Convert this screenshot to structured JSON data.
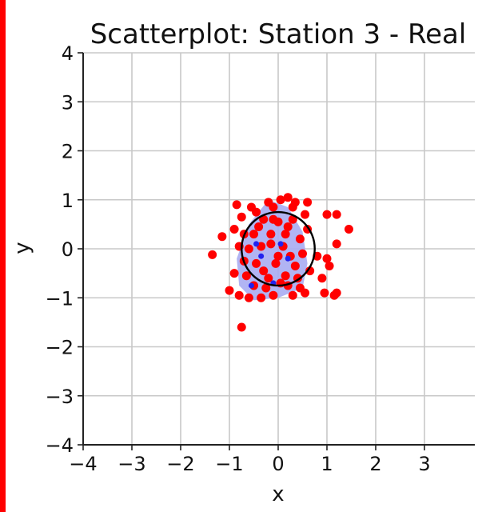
{
  "chart_data": {
    "type": "scatter",
    "title": "Scatterplot: Station 3 - Real",
    "xlabel": "x",
    "ylabel": "y",
    "xlim": [
      -4,
      4
    ],
    "ylim": [
      -4,
      4
    ],
    "xticks": [
      "−4",
      "−3",
      "−2",
      "−1",
      "0",
      "1",
      "2",
      "3"
    ],
    "yticks": [
      "4",
      "3",
      "2",
      "1",
      "0",
      "−1",
      "−2",
      "−3",
      "−4"
    ],
    "grid": true,
    "circle": {
      "center": [
        0,
        0
      ],
      "radius": 0.75,
      "color": "#000000"
    },
    "density": {
      "color": "#a8acf2",
      "points": [
        [
          -0.2,
          1.0
        ],
        [
          0.2,
          0.85
        ],
        [
          0.5,
          0.35
        ],
        [
          0.6,
          -0.3
        ],
        [
          0.5,
          -0.8
        ],
        [
          0.0,
          -1.0
        ],
        [
          -0.5,
          -1.05
        ],
        [
          -0.8,
          -0.75
        ],
        [
          -0.85,
          -0.2
        ],
        [
          -0.6,
          0.5
        ]
      ]
    },
    "series": [
      {
        "color": "#ff0000",
        "points": [
          [
            -0.85,
            0.9
          ],
          [
            -0.75,
            0.65
          ],
          [
            -0.45,
            0.75
          ],
          [
            -0.2,
            0.95
          ],
          [
            0.05,
            1.0
          ],
          [
            0.2,
            1.05
          ],
          [
            0.35,
            0.95
          ],
          [
            0.6,
            0.95
          ],
          [
            1.0,
            0.7
          ],
          [
            1.2,
            0.7
          ],
          [
            1.45,
            0.4
          ],
          [
            1.2,
            0.1
          ],
          [
            -1.15,
            0.25
          ],
          [
            -1.35,
            -0.12
          ],
          [
            -0.9,
            0.4
          ],
          [
            0.8,
            -0.15
          ],
          [
            1.0,
            -0.2
          ],
          [
            1.05,
            -0.35
          ],
          [
            0.9,
            -0.6
          ],
          [
            0.95,
            -0.9
          ],
          [
            1.15,
            -0.95
          ],
          [
            1.2,
            -0.9
          ],
          [
            -1.0,
            -0.85
          ],
          [
            -0.8,
            -0.95
          ],
          [
            -0.6,
            -1.0
          ],
          [
            -0.35,
            -1.0
          ],
          [
            -0.1,
            -0.95
          ],
          [
            0.3,
            -0.95
          ],
          [
            0.55,
            -0.9
          ],
          [
            -0.75,
            -1.6
          ],
          [
            -0.9,
            -0.5
          ],
          [
            -0.65,
            -0.55
          ],
          [
            -0.5,
            0.3
          ],
          [
            -0.3,
            0.6
          ],
          [
            -0.15,
            0.3
          ],
          [
            0.0,
            0.55
          ],
          [
            0.15,
            0.3
          ],
          [
            0.3,
            0.6
          ],
          [
            0.45,
            0.2
          ],
          [
            0.5,
            -0.1
          ],
          [
            0.35,
            -0.35
          ],
          [
            0.15,
            -0.55
          ],
          [
            -0.05,
            -0.3
          ],
          [
            -0.2,
            -0.6
          ],
          [
            -0.45,
            -0.3
          ],
          [
            -0.6,
            0.0
          ],
          [
            -0.35,
            0.05
          ],
          [
            0.1,
            0.05
          ],
          [
            0.25,
            -0.15
          ],
          [
            -0.15,
            0.1
          ],
          [
            0.4,
            -0.6
          ],
          [
            0.2,
            -0.75
          ],
          [
            -0.25,
            -0.8
          ],
          [
            -0.5,
            -0.75
          ],
          [
            -0.7,
            -0.25
          ],
          [
            -0.7,
            0.3
          ],
          [
            0.6,
            0.4
          ],
          [
            0.65,
            -0.45
          ],
          [
            -0.1,
            0.85
          ],
          [
            0.05,
            -0.7
          ],
          [
            -0.4,
            0.45
          ],
          [
            0.3,
            0.85
          ],
          [
            0.55,
            0.7
          ],
          [
            -0.55,
            0.85
          ],
          [
            -0.3,
            -0.45
          ],
          [
            0.0,
            -0.15
          ],
          [
            -0.1,
            0.6
          ],
          [
            0.2,
            0.45
          ],
          [
            0.45,
            -0.8
          ],
          [
            -0.8,
            0.05
          ]
        ]
      },
      {
        "color": "#2222ee",
        "points": [
          [
            -0.45,
            0.1
          ],
          [
            -0.35,
            -0.15
          ],
          [
            0.05,
            0.1
          ],
          [
            -0.1,
            -0.7
          ],
          [
            -0.55,
            -0.75
          ],
          [
            0.2,
            -0.2
          ]
        ]
      }
    ]
  }
}
